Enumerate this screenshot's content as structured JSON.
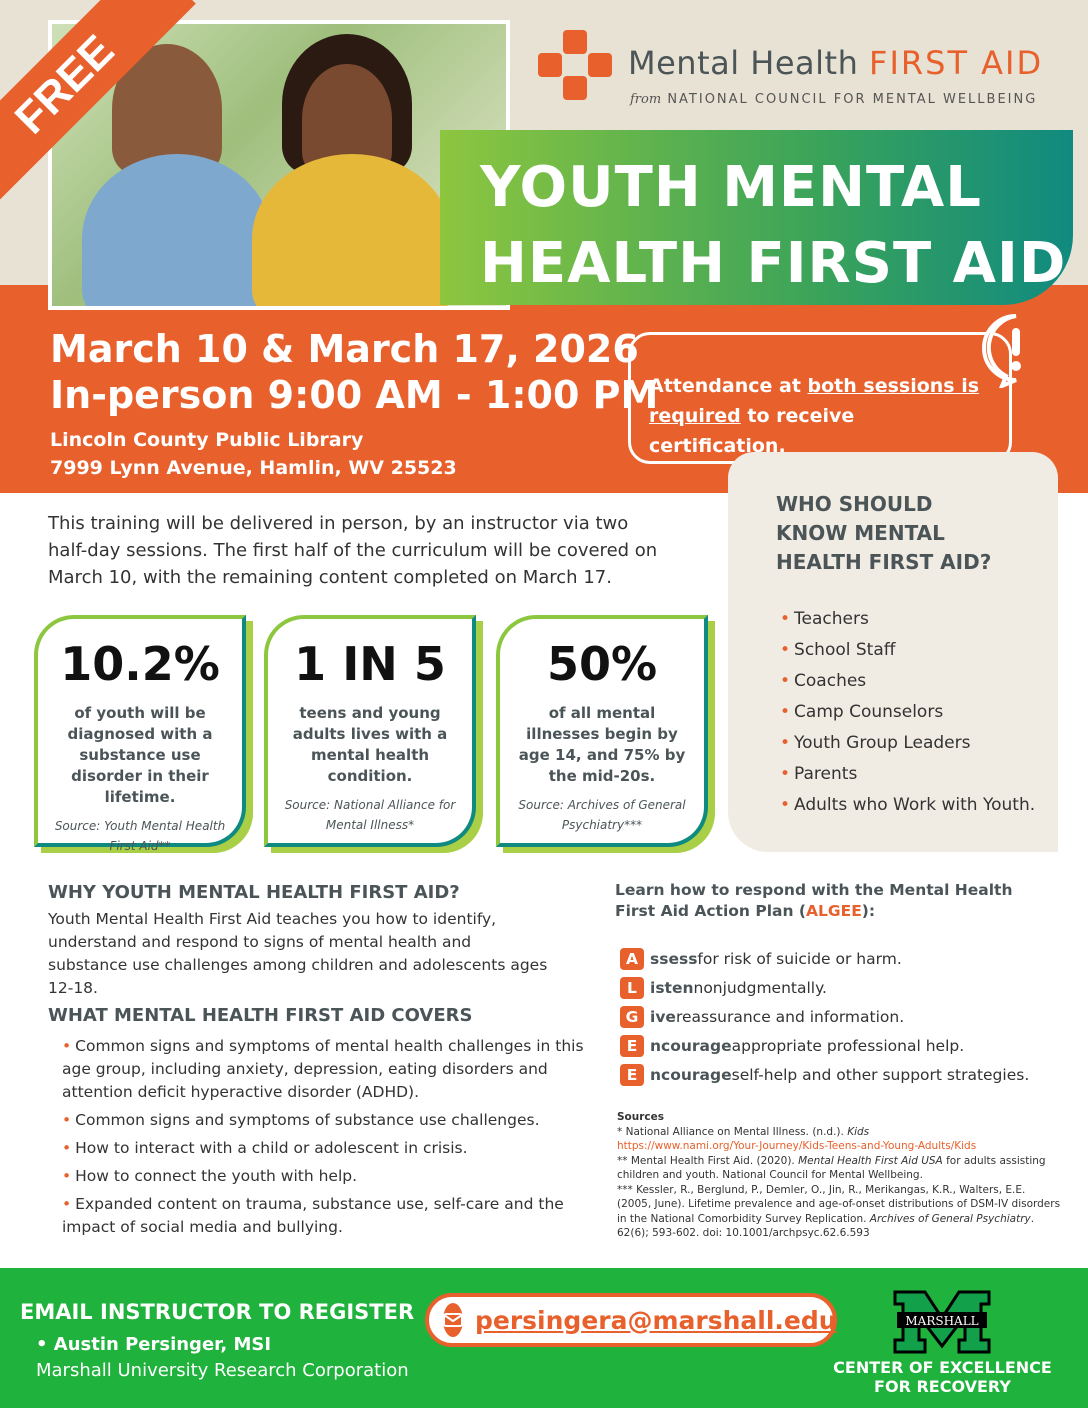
{
  "banner": {
    "free_label": "FREE"
  },
  "logo": {
    "name_main": "Mental Health ",
    "name_accent": "FIRST AID",
    "sub_from": "from",
    "sub_org": " NATIONAL COUNCIL FOR MENTAL WELLBEING"
  },
  "title": {
    "line1": "YOUTH MENTAL",
    "line2": "HEALTH FIRST AID"
  },
  "event": {
    "dates": "March 10 & March 17, 2026",
    "time": "In-person 9:00 AM - 1:00 PM",
    "venue": "Lincoln County Public Library",
    "address": "7999 Lynn Avenue, Hamlin, WV 25523"
  },
  "notice": {
    "pre": "Attendance at ",
    "u1": "both sessions is",
    "u2": "required",
    "post": " to receive certification."
  },
  "intro": "This training will be delivered in person, by an instructor via two half-day sessions. The first half of the curriculum will be covered on March 10, with the remaining content completed on March 17.",
  "stats": [
    {
      "big": "10.2%",
      "desc": "of youth will be diagnosed with a substance use disorder in their lifetime.",
      "source": "Source: Youth Mental Health First Aid**"
    },
    {
      "big": "1 IN 5",
      "desc": "teens and young adults lives with a mental health condition.",
      "source": "Source: National Alliance for Mental Illness*"
    },
    {
      "big": "50%",
      "desc": "of all mental illnesses begin by age 14, and 75% by the mid-20s.",
      "source": "Source: Archives of General Psychiatry***"
    }
  ],
  "who": {
    "heading": "WHO SHOULD KNOW MENTAL HEALTH FIRST AID?",
    "items": [
      "Teachers",
      "School Staff",
      "Coaches",
      "Camp Counselors",
      "Youth Group Leaders",
      "Parents",
      "Adults who Work with Youth."
    ]
  },
  "why": {
    "heading": "WHY YOUTH MENTAL HEALTH FIRST AID?",
    "body": "Youth Mental Health First Aid teaches you how to identify, understand and respond to signs of mental health and substance use challenges among children and adolescents ages 12-18."
  },
  "covers": {
    "heading": "WHAT MENTAL HEALTH FIRST AID COVERS",
    "items": [
      "Common signs and symptoms of mental health challenges in this age group, including anxiety, depression, eating disorders and attention deficit hyperactive disorder (ADHD).",
      "Common signs and symptoms of substance use challenges.",
      "How to interact with a child or adolescent in crisis.",
      "How to connect the youth with help.",
      "Expanded content on trauma, substance use, self-care and the impact of social media and bullying."
    ]
  },
  "algee": {
    "heading_pre": "Learn how to respond with the Mental Health First Aid Action Plan (",
    "heading_accent": "ALGEE",
    "heading_post": "):",
    "steps": [
      {
        "letter": "A",
        "rest": "ssess",
        "text": " for risk of suicide or harm."
      },
      {
        "letter": "L",
        "rest": "isten",
        "text": " nonjudgmentally."
      },
      {
        "letter": "G",
        "rest": "ive",
        "text": " reassurance and information."
      },
      {
        "letter": "E",
        "rest": "ncourage",
        "text": " appropriate professional help."
      },
      {
        "letter": "E",
        "rest": "ncourage",
        "text": " self-help and other support strategies."
      }
    ]
  },
  "sources": {
    "heading": "Sources",
    "s1": "* National Alliance on Mental Illness. (n.d.). ",
    "s1_i": "Kids",
    "s1_link": "https://www.nami.org/Your-Journey/Kids-Teens-and-Young-Adults/Kids",
    "s2": "** Mental Health First Aid. (2020). ",
    "s2_i": "Mental Health First Aid USA",
    "s2_post": " for adults assisting children and youth. National Council for Mental Wellbeing.",
    "s3": "*** Kessler, R., Berglund, P., Demler, O., Jin, R., Merikangas, K.R., Walters, E.E. (2005, June). Lifetime prevalence and age-of-onset distributions of DSM-IV disorders in the National Comorbidity Survey Replication. ",
    "s3_i": "Archives of General Psychiatry",
    "s3_post": ". 62(6); 593-602. doi: 10.1001/archpsyc.62.6.593"
  },
  "footer": {
    "register": "EMAIL INSTRUCTOR TO REGISTER",
    "instructor": "• Austin Persinger, MSI",
    "org": "Marshall University Research Corporation",
    "email": "persingera@marshall.edu",
    "marshall_logo": "MARSHALL",
    "center": "CENTER OF EXCELLENCE FOR RECOVERY"
  },
  "colors": {
    "orange": "#e8602c",
    "green": "#1fb23c",
    "teal": "#0f8a80",
    "lime": "#8dc63f",
    "beige": "#e8e2d4"
  }
}
